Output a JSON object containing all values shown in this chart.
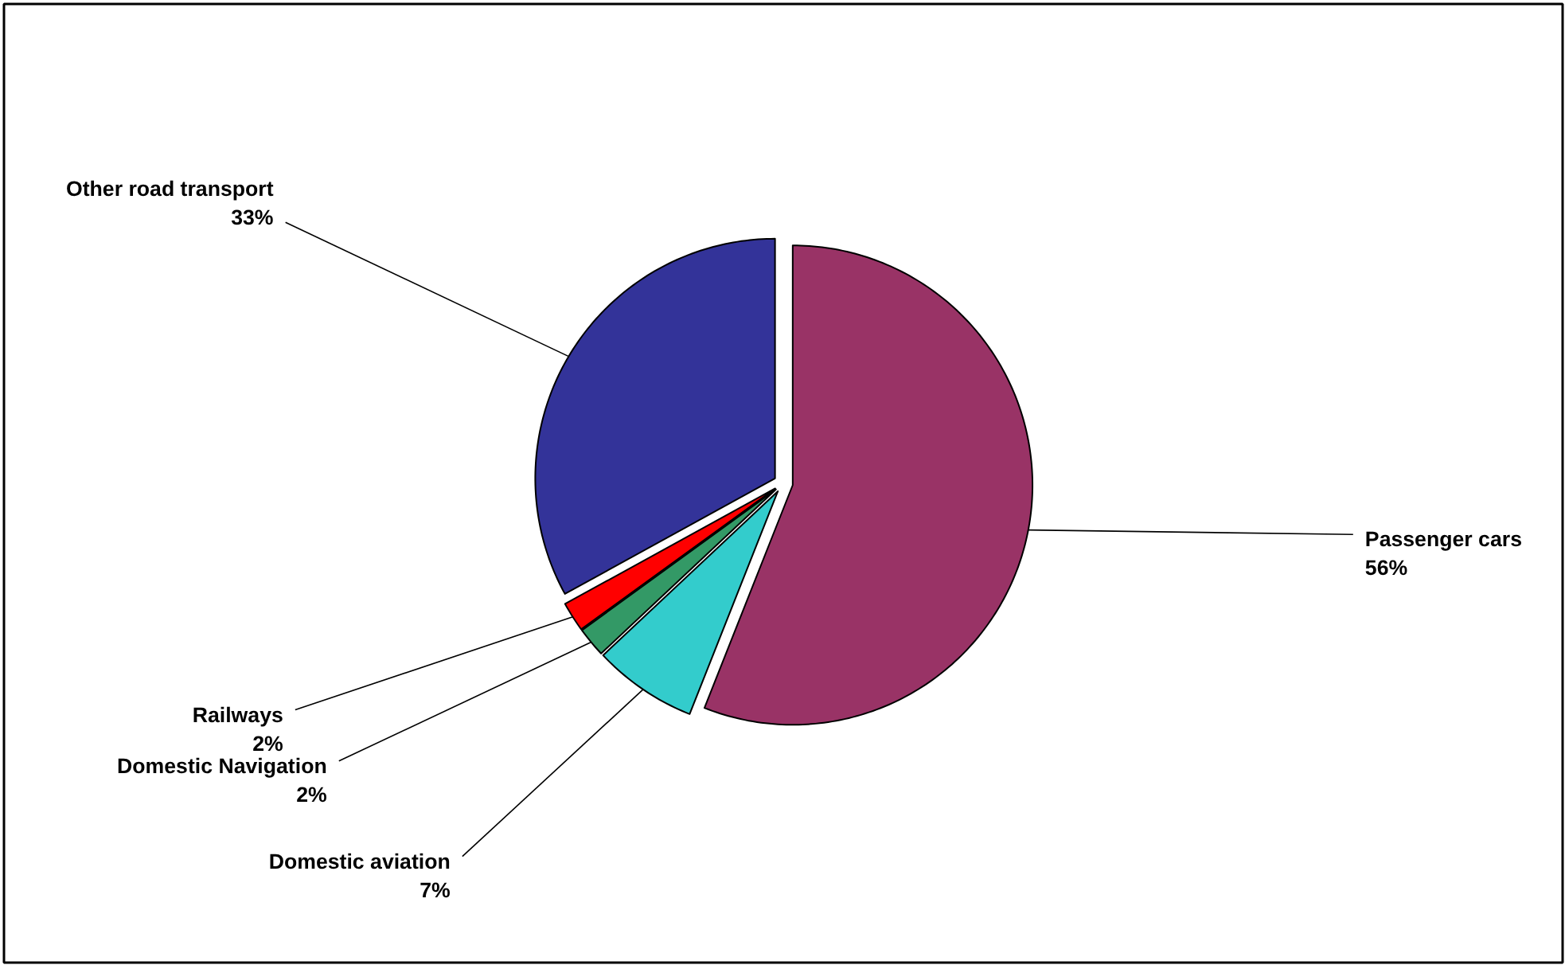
{
  "chart_data": {
    "type": "pie",
    "categories": [
      "Passenger cars",
      "Domestic aviation",
      "Domestic Navigation",
      "Railways",
      "Other road transport"
    ],
    "values": [
      56,
      7,
      2,
      2,
      33
    ],
    "colors": [
      "#993366",
      "#33cccc",
      "#339966",
      "#ff0000",
      "#333399"
    ],
    "data_labels": true,
    "value_labels": [
      "56%",
      "7%",
      "2%",
      "2%",
      "33%"
    ]
  }
}
